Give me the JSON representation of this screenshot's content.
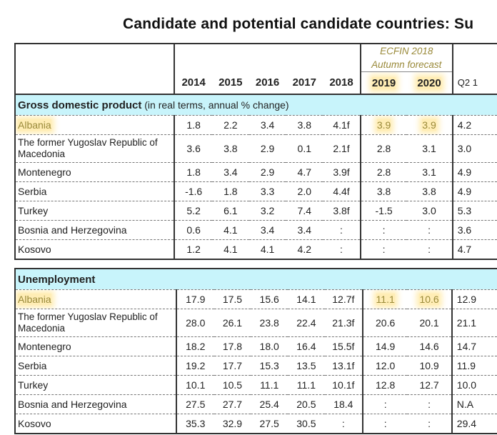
{
  "title": "Candidate and potential candidate countries: Su",
  "header": {
    "forecast_label_line1": "ECFIN 2018",
    "forecast_label_line2": "Autumn forecast",
    "years": [
      "2014",
      "2015",
      "2016",
      "2017",
      "2018",
      "2019",
      "2020"
    ],
    "extra_col": "Q2 1"
  },
  "sections": [
    {
      "title": "Gross domestic product",
      "subtitle": "(in real terms, annual % change)",
      "rows": [
        {
          "country": "Albania",
          "values": [
            "1.8",
            "2.2",
            "3.4",
            "3.8",
            "4.1f",
            "3.9",
            "3.9",
            "4.2"
          ]
        },
        {
          "country": "The former Yugoslav Republic of Macedonia",
          "values": [
            "3.6",
            "3.8",
            "2.9",
            "0.1",
            "2.1f",
            "2.8",
            "3.1",
            "3.0"
          ]
        },
        {
          "country": "Montenegro",
          "values": [
            "1.8",
            "3.4",
            "2.9",
            "4.7",
            "3.9f",
            "2.8",
            "3.1",
            "4.9"
          ]
        },
        {
          "country": "Serbia",
          "values": [
            "-1.6",
            "1.8",
            "3.3",
            "2.0",
            "4.4f",
            "3.8",
            "3.8",
            "4.9"
          ]
        },
        {
          "country": "Turkey",
          "values": [
            "5.2",
            "6.1",
            "3.2",
            "7.4",
            "3.8f",
            "-1.5",
            "3.0",
            "5.3"
          ]
        },
        {
          "country": "Bosnia and Herzegovina",
          "values": [
            "0.6",
            "4.1",
            "3.4",
            "3.4",
            ":",
            ":",
            ":",
            "3.6"
          ]
        },
        {
          "country": "Kosovo",
          "values": [
            "1.2",
            "4.1",
            "4.1",
            "4.2",
            ":",
            ":",
            ":",
            "4.7"
          ]
        }
      ]
    },
    {
      "title": "Unemployment",
      "subtitle": "",
      "rows": [
        {
          "country": "Albania",
          "values": [
            "17.9",
            "17.5",
            "15.6",
            "14.1",
            "12.7f",
            "11.1",
            "10.6",
            "12.9"
          ]
        },
        {
          "country": "The former Yugoslav Republic of Macedonia",
          "values": [
            "28.0",
            "26.1",
            "23.8",
            "22.4",
            "21.3f",
            "20.6",
            "20.1",
            "21.1"
          ]
        },
        {
          "country": "Montenegro",
          "values": [
            "18.2",
            "17.8",
            "18.0",
            "16.4",
            "15.5f",
            "14.9",
            "14.6",
            "14.7"
          ]
        },
        {
          "country": "Serbia",
          "values": [
            "19.2",
            "17.7",
            "15.3",
            "13.5",
            "13.1f",
            "12.0",
            "10.9",
            "11.9"
          ]
        },
        {
          "country": "Turkey",
          "values": [
            "10.1",
            "10.5",
            "11.1",
            "11.1",
            "10.1f",
            "12.8",
            "12.7",
            "10.0"
          ]
        },
        {
          "country": "Bosnia and Herzegovina",
          "values": [
            "27.5",
            "27.7",
            "25.4",
            "20.5",
            "18.4",
            ":",
            ":",
            "N.A"
          ]
        },
        {
          "country": "Kosovo",
          "values": [
            "35.3",
            "32.9",
            "27.5",
            "30.5",
            ":",
            ":",
            ":",
            "29.4"
          ]
        }
      ]
    }
  ],
  "highlight_color": "#ffd65a",
  "band_color": "#c8f4fb"
}
